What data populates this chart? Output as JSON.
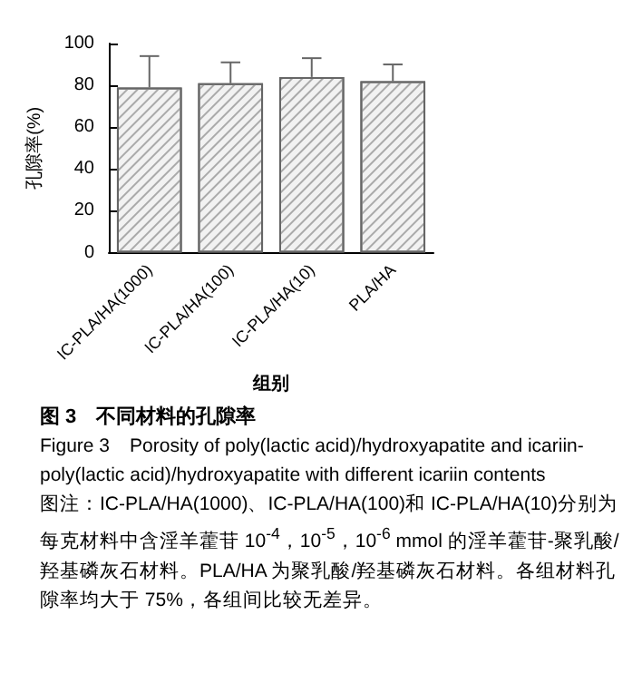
{
  "chart_data": {
    "type": "bar",
    "title": "图 3　不同材料的孔隙率",
    "xlabel": "组别",
    "ylabel": "孔隙率(%)",
    "categories": [
      "IC-PLA/HA(1000)",
      "IC-PLA/HA(100)",
      "IC-PLA/HA(10)",
      "PLA/HA"
    ],
    "values": [
      79,
      81,
      84,
      82
    ],
    "errors": [
      15,
      10,
      9,
      8
    ],
    "color": "#f2f2f2",
    "ylim": [
      0,
      100
    ],
    "yticks": [
      0,
      20,
      40,
      60,
      80,
      100
    ],
    "grid": false,
    "annotations": [
      "Figure 3　Porosity of poly(lactic acid)/hydroxyapatite and icariin-poly(lactic acid)/hydroxyapatite with different icariin contents",
      "图注：IC-PLA/HA(1000)、IC-PLA/HA(100)和 IC-PLA/HA(10)分别为每克材料中含淫羊藿苷 10$^{-4}$，10$^{-5}$，10$^{-6}$ mmol 的淫羊藿苷-聚乳酸/羟基磷灰石材料。PLA/HA 为聚乳酸/羟基磷灰石材料。各组材料孔隙率均大于 75%，各组间比较无差异。"
    ]
  }
}
